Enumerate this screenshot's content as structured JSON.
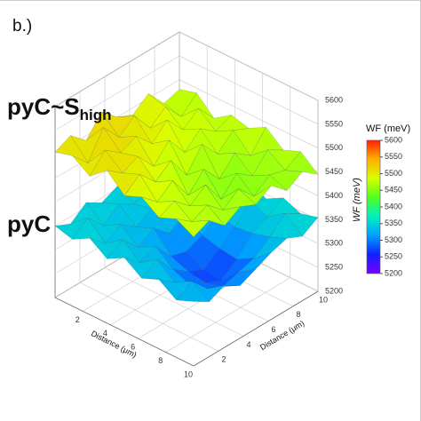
{
  "chart_data": {
    "type": "surface",
    "title": "b.)",
    "x": [
      0,
      1.25,
      2.5,
      3.75,
      5,
      6.25,
      7.5,
      8.75,
      10
    ],
    "y": [
      0,
      1.25,
      2.5,
      3.75,
      5,
      6.25,
      7.5,
      8.75,
      10
    ],
    "xlim": [
      0,
      10
    ],
    "ylim": [
      0,
      10
    ],
    "zlim": [
      5200,
      5600
    ],
    "xticks": [
      2,
      4,
      6,
      8,
      10
    ],
    "yticks": [
      2,
      4,
      6,
      8,
      10
    ],
    "zticks": [
      5200,
      5250,
      5300,
      5350,
      5400,
      5450,
      5500,
      5550,
      5600
    ],
    "xlabel": "Distance (μm)",
    "ylabel": "Distance (μm)",
    "zlabel": "WF (meV)",
    "grid": true,
    "colorbar": {
      "title": "WF (meV)",
      "colormap": [
        "#7a00ff",
        "#1020ff",
        "#00a0ff",
        "#00f0c0",
        "#50ff20",
        "#d8ff00",
        "#ffb000",
        "#ff2000"
      ]
    },
    "series": [
      {
        "name": "pyC",
        "values": [
          [
            5350,
            5335,
            5360,
            5340,
            5355,
            5330,
            5365,
            5345,
            5360
          ],
          [
            5340,
            5365,
            5330,
            5355,
            5335,
            5360,
            5340,
            5370,
            5345
          ],
          [
            5360,
            5330,
            5350,
            5325,
            5345,
            5335,
            5360,
            5340,
            5365
          ],
          [
            5335,
            5355,
            5320,
            5340,
            5310,
            5330,
            5345,
            5360,
            5340
          ],
          [
            5355,
            5325,
            5340,
            5300,
            5290,
            5305,
            5330,
            5345,
            5365
          ],
          [
            5330,
            5350,
            5310,
            5285,
            5270,
            5295,
            5320,
            5355,
            5340
          ],
          [
            5345,
            5320,
            5295,
            5280,
            5265,
            5290,
            5325,
            5340,
            5360
          ],
          [
            5320,
            5340,
            5305,
            5290,
            5300,
            5310,
            5335,
            5365,
            5345
          ],
          [
            5335,
            5315,
            5330,
            5310,
            5325,
            5340,
            5350,
            5335,
            5355
          ]
        ]
      },
      {
        "name": "pyC~S",
        "name_subscript": "high",
        "values": [
          [
            5505,
            5520,
            5490,
            5530,
            5500,
            5485,
            5510,
            5470,
            5480
          ],
          [
            5515,
            5480,
            5535,
            5495,
            5520,
            5475,
            5500,
            5460,
            5490
          ],
          [
            5490,
            5525,
            5500,
            5515,
            5480,
            5510,
            5470,
            5495,
            5455
          ],
          [
            5520,
            5495,
            5510,
            5470,
            5505,
            5460,
            5490,
            5465,
            5480
          ],
          [
            5485,
            5510,
            5475,
            5500,
            5450,
            5495,
            5455,
            5485,
            5470
          ],
          [
            5500,
            5470,
            5495,
            5445,
            5480,
            5440,
            5475,
            5450,
            5490
          ],
          [
            5475,
            5490,
            5460,
            5485,
            5435,
            5470,
            5445,
            5480,
            5460
          ],
          [
            5490,
            5465,
            5480,
            5450,
            5475,
            5440,
            5465,
            5455,
            5475
          ],
          [
            5470,
            5485,
            5455,
            5475,
            5460,
            5480,
            5450,
            5470,
            5445
          ]
        ]
      }
    ]
  }
}
